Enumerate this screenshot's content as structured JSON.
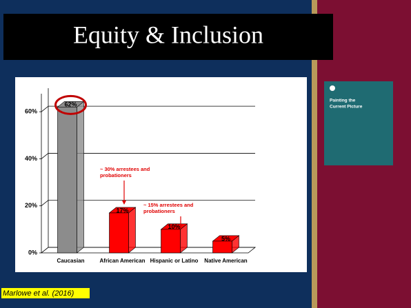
{
  "title": "Equity & Inclusion",
  "citation": "Marlowe et al. (2016)",
  "book": {
    "title_lines": [
      "Painting the",
      "Current Picture"
    ]
  },
  "chart_data": {
    "type": "bar",
    "categories": [
      "Caucasian",
      "African American",
      "Hispanic or Latino",
      "Native American"
    ],
    "values": [
      62,
      17,
      10,
      5
    ],
    "value_labels": [
      "62%",
      "17%",
      "10%",
      "5%"
    ],
    "colors": [
      "#8c8c8c",
      "#ff0000",
      "#ff0000",
      "#ff0000"
    ],
    "ylim": [
      0,
      70
    ],
    "yticks": [
      {
        "value": 0,
        "label": "0%"
      },
      {
        "value": 20,
        "label": "20%"
      },
      {
        "value": 40,
        "label": "40%"
      },
      {
        "value": 60,
        "label": "60%"
      }
    ],
    "grid": true,
    "annotations": [
      {
        "lines": [
          "~ 30% arrestees and",
          "probationers"
        ]
      },
      {
        "lines": [
          "~ 15% arrestees and",
          "probationers"
        ]
      }
    ]
  }
}
